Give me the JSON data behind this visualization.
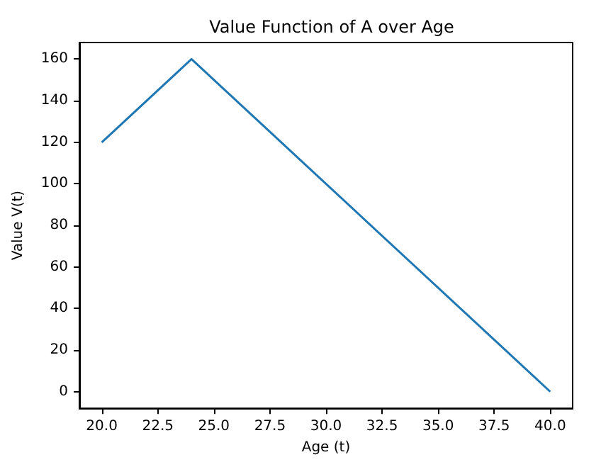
{
  "chart_data": {
    "type": "line",
    "title": "Value Function of A over Age",
    "xlabel": "Age (t)",
    "ylabel": "Value V(t)",
    "x": [
      20,
      24,
      40
    ],
    "series": [
      {
        "color": "#1f77b4",
        "values": [
          120,
          160,
          0
        ]
      }
    ],
    "xlim": [
      19,
      41
    ],
    "ylim": [
      -8,
      168
    ],
    "xticks": [
      {
        "value": 20,
        "label": "20.0"
      },
      {
        "value": 22.5,
        "label": "22.5"
      },
      {
        "value": 25,
        "label": "25.0"
      },
      {
        "value": 27.5,
        "label": "27.5"
      },
      {
        "value": 30,
        "label": "30.0"
      },
      {
        "value": 32.5,
        "label": "32.5"
      },
      {
        "value": 35,
        "label": "35.0"
      },
      {
        "value": 37.5,
        "label": "37.5"
      },
      {
        "value": 40,
        "label": "40.0"
      }
    ],
    "yticks": [
      0,
      20,
      40,
      60,
      80,
      100,
      120,
      140,
      160
    ],
    "grid": false,
    "marker": "none",
    "line_style": "solid"
  }
}
